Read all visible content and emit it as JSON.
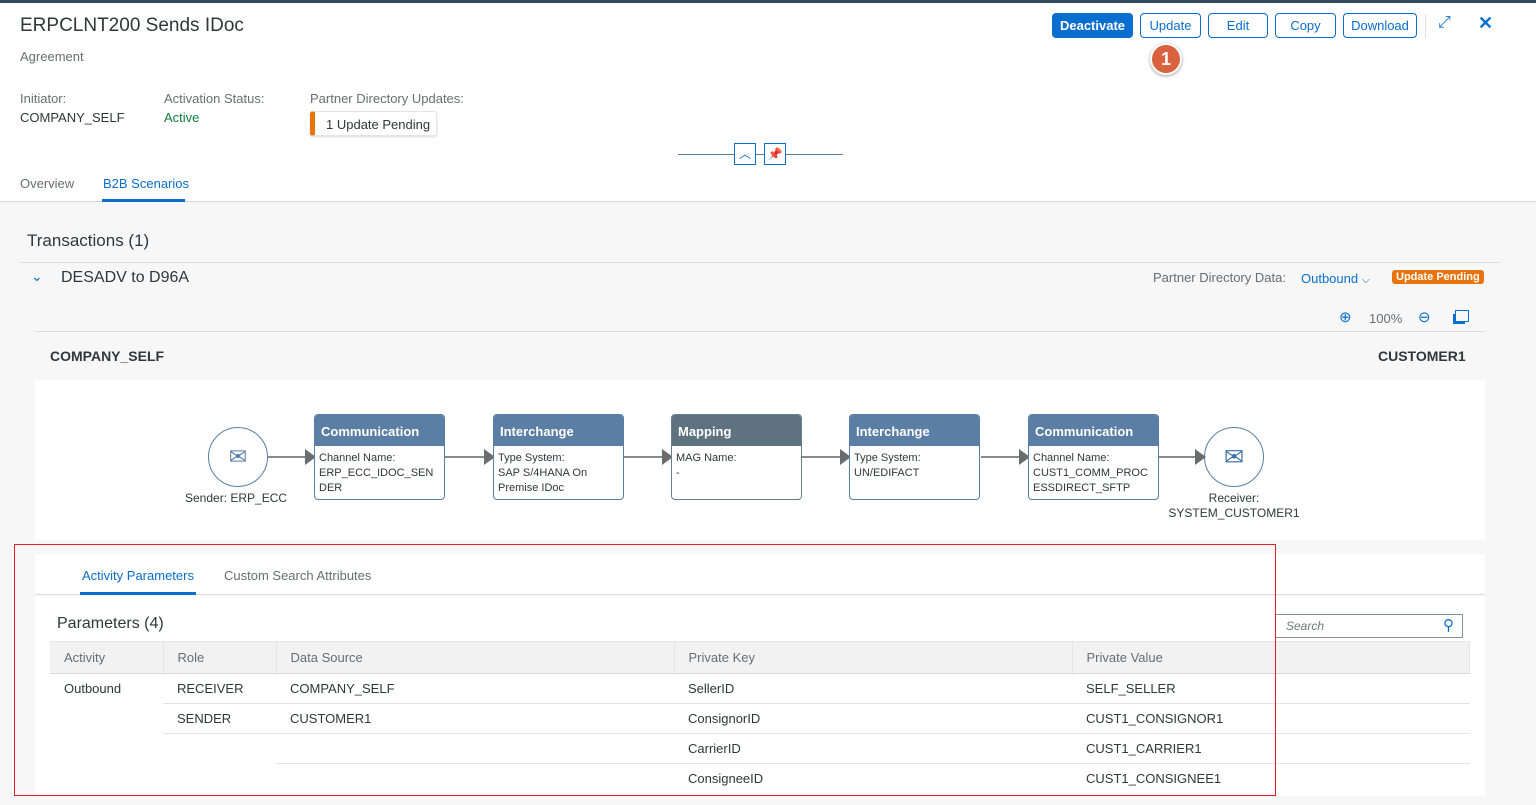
{
  "header": {
    "title": "ERPCLNT200 Sends IDoc",
    "subtitle": "Agreement",
    "buttons": {
      "deactivate": "Deactivate",
      "update": "Update",
      "edit": "Edit",
      "copy": "Copy",
      "download": "Download"
    },
    "step_badge": "1",
    "initiator_label": "Initiator:",
    "initiator_value": "COMPANY_SELF",
    "activation_label": "Activation Status:",
    "activation_value": "Active",
    "pd_label": "Partner Directory Updates:",
    "pd_value": "1 Update Pending",
    "tabs": [
      {
        "label": "Overview"
      },
      {
        "label": "B2B Scenarios"
      }
    ]
  },
  "transactions": {
    "title": "Transactions (1)",
    "item": "DESADV to D96A",
    "pd_data_label": "Partner Directory Data:",
    "pd_data_value": "Outbound",
    "status_badge": "Update Pending",
    "zoom": "100%",
    "left_party": "COMPANY_SELF",
    "right_party": "CUSTOMER1"
  },
  "flow": {
    "sender": "Sender: ERP_ECC",
    "receiver": "Receiver: SYSTEM_CUSTOMER1",
    "nodes": [
      {
        "title": "Communication",
        "k": "Channel Name:",
        "v": "ERP_ECC_IDOC_SENDER"
      },
      {
        "title": "Interchange",
        "k": "Type System:",
        "v": "SAP S/4HANA On Premise IDoc"
      },
      {
        "title": "Mapping",
        "k": "MAG Name:",
        "v": "-"
      },
      {
        "title": "Interchange",
        "k": "Type System:",
        "v": "UN/EDIFACT"
      },
      {
        "title": "Communication",
        "k": "Channel Name:",
        "v": "CUST1_COMM_PROCESSDIRECT_SFTP"
      }
    ]
  },
  "params": {
    "tabs": [
      "Activity Parameters",
      "Custom Search Attributes"
    ],
    "title": "Parameters (4)",
    "search_placeholder": "Search",
    "columns": [
      "Activity",
      "Role",
      "Data Source",
      "Private Key",
      "Private Value"
    ],
    "rows": [
      [
        "Outbound",
        "RECEIVER",
        "COMPANY_SELF",
        "SellerID",
        "SELF_SELLER"
      ],
      [
        "",
        "SENDER",
        "CUSTOMER1",
        "ConsignorID",
        "CUST1_CONSIGNOR1"
      ],
      [
        "",
        "",
        "",
        "CarrierID",
        "CUST1_CARRIER1"
      ],
      [
        "",
        "",
        "",
        "ConsigneeID",
        "CUST1_CONSIGNEE1"
      ]
    ]
  },
  "colors": {
    "accent": "#0a6ed1",
    "warning": "#e9730c",
    "highlight": "#e02020",
    "badge": "#d9623f"
  }
}
